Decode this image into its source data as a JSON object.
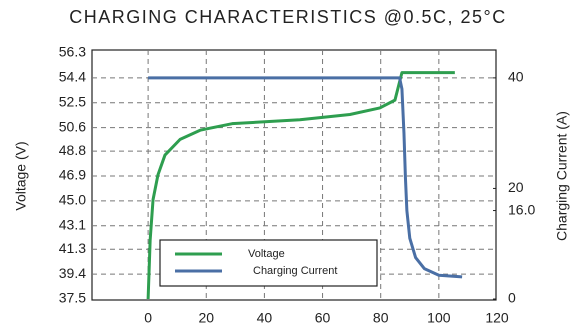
{
  "chart_data": {
    "type": "line",
    "title": "CHARGING CHARACTERISTICS @0.5C, 25°C",
    "ylabel": "Voltage (V)",
    "y2label": "Charging Current (A)",
    "xlim": [
      -19.3,
      120
    ],
    "xticks": [
      0,
      20,
      40,
      60,
      80,
      100,
      120
    ],
    "ylim": [
      37.5,
      56.3
    ],
    "yticks": [
      56.3,
      54.4,
      52.5,
      50.6,
      48.8,
      46.9,
      {
        "value": 45,
        "label": "45.0"
      },
      43.1,
      41.3,
      39.4,
      37.5
    ],
    "y2lim": [
      0,
      44.5
    ],
    "y2ticks": [
      40,
      20,
      {
        "value": 16,
        "label": "16.0"
      },
      0
    ],
    "grid": true,
    "legend": "lower left",
    "series": [
      {
        "name": "Voltage",
        "color": "#2e9e4f",
        "x": [
          0,
          0.7,
          1.7,
          3.4,
          5.8,
          11,
          17.9,
          28.9,
          52.2,
          69.4,
          79.7,
          84.9,
          87.3,
          105.5
        ],
        "values": [
          37.5,
          42.0,
          45.1,
          47.0,
          48.5,
          49.7,
          50.4,
          50.9,
          51.2,
          51.6,
          52.1,
          52.7,
          54.8,
          54.8
        ]
      },
      {
        "name": "Charging Current",
        "color": "#4a6fa5",
        "axis": "y2",
        "x": [
          0,
          86.5,
          87.3,
          88,
          88.5,
          89,
          90,
          92,
          95,
          100,
          108
        ],
        "values": [
          40,
          40,
          38,
          30,
          22,
          16,
          11,
          7.5,
          5.5,
          4.3,
          4
        ]
      }
    ]
  }
}
